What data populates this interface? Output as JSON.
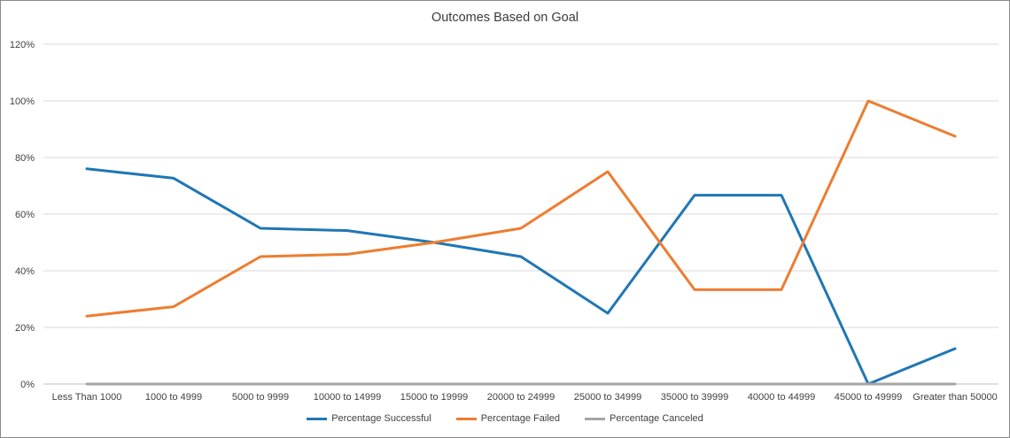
{
  "chart_data": {
    "type": "line",
    "title": "Outcomes Based on Goal",
    "xlabel": "",
    "ylabel": "",
    "categories": [
      "Less Than 1000",
      "1000 to 4999",
      "5000 to 9999",
      "10000 to 14999",
      "15000 to 19999",
      "20000 to 24999",
      "25000 to 34999",
      "35000 to 39999",
      "40000 to 44999",
      "45000 to 49999",
      "Greater than 50000"
    ],
    "series": [
      {
        "name": "Percentage Successful",
        "color": "#1F77B4",
        "values": [
          76,
          72.7,
          55,
          54.2,
          50,
          45,
          25,
          66.7,
          66.7,
          0,
          12.5
        ]
      },
      {
        "name": "Percentage Failed",
        "color": "#ED7D31",
        "values": [
          24,
          27.3,
          45,
          45.8,
          50,
          55,
          75,
          33.3,
          33.3,
          100,
          87.5
        ]
      },
      {
        "name": "Percentage Canceled",
        "color": "#A5A5A5",
        "values": [
          0,
          0,
          0,
          0,
          0,
          0,
          0,
          0,
          0,
          0,
          0
        ]
      }
    ],
    "yticks": [
      {
        "value": 0,
        "label": "0%"
      },
      {
        "value": 20,
        "label": "20%"
      },
      {
        "value": 40,
        "label": "40%"
      },
      {
        "value": 60,
        "label": "60%"
      },
      {
        "value": 80,
        "label": "80%"
      },
      {
        "value": 100,
        "label": "100%"
      },
      {
        "value": 120,
        "label": "120%"
      }
    ],
    "ylim": [
      0,
      120
    ],
    "grid": true,
    "legend_position": "bottom",
    "colors": {
      "gridline": "#D9D9D9",
      "axis_line": "#BFBFBF",
      "tick_text": "#404040",
      "title_text": "#3B3B3B",
      "frame_border": "#898989"
    }
  }
}
